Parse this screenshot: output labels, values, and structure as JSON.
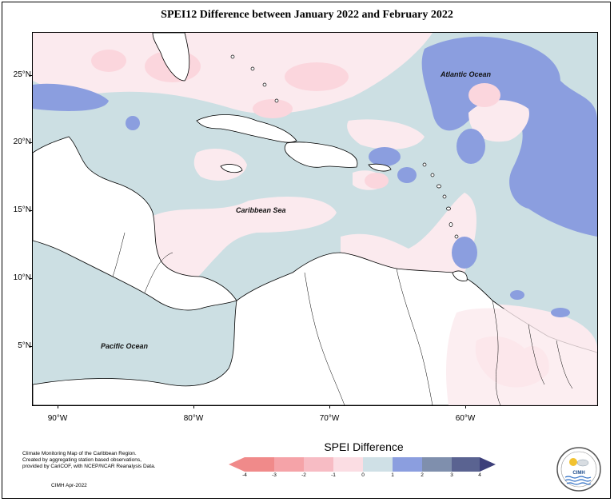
{
  "title": "SPEI12 Difference between January 2022 and February 2022",
  "map": {
    "labels": {
      "atlantic": "Atlantic Ocean",
      "caribbean": "Caribbean Sea",
      "pacific": "Pacific Ocean"
    },
    "lat_ticks": [
      "25°N",
      "20°N",
      "15°N",
      "10°N",
      "5°N"
    ],
    "lon_ticks": [
      "90°W",
      "80°W",
      "70°W",
      "60°W"
    ],
    "colors": {
      "ocean_neutral": "#ccdfe3",
      "land": "#ffffff",
      "slight_dry": "#fbeaee",
      "dry": "#fbd6dd",
      "wet": "#8b9edf"
    }
  },
  "legend": {
    "title": "SPEI Difference",
    "ticks": [
      "-4",
      "-3",
      "-2",
      "-1",
      "0",
      "1",
      "2",
      "3",
      "4"
    ],
    "colors": [
      "#f08a8a",
      "#f5a3a8",
      "#f7bcc4",
      "#fbdde3",
      "#fbeced",
      "#cfe0e6",
      "#8b9edf",
      "#7f8fad",
      "#5a6391"
    ]
  },
  "credits": {
    "line1": "Climate Monitoring Map of the Caribbean Region.",
    "line2": "Created by aggregating station based observations,",
    "line3": "provided by CariCOF, with NCEP/NCAR Reanalysis Data.",
    "stamp": "CIMH Apr-2022"
  },
  "logo": {
    "text": "CIMH"
  }
}
